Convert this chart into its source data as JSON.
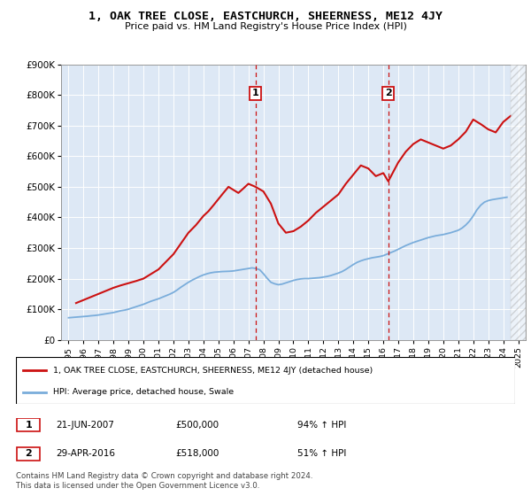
{
  "title": "1, OAK TREE CLOSE, EASTCHURCH, SHEERNESS, ME12 4JY",
  "subtitle": "Price paid vs. HM Land Registry's House Price Index (HPI)",
  "legend_label_red": "1, OAK TREE CLOSE, EASTCHURCH, SHEERNESS, ME12 4JY (detached house)",
  "legend_label_blue": "HPI: Average price, detached house, Swale",
  "annotation1_date": "21-JUN-2007",
  "annotation1_price": "£500,000",
  "annotation1_hpi": "94% ↑ HPI",
  "annotation2_date": "29-APR-2016",
  "annotation2_price": "£518,000",
  "annotation2_hpi": "51% ↑ HPI",
  "marker1_x": 2007.47,
  "marker2_x": 2016.33,
  "ylim": [
    0,
    900000
  ],
  "xlim": [
    1994.5,
    2025.5
  ],
  "yticks": [
    0,
    100000,
    200000,
    300000,
    400000,
    500000,
    600000,
    700000,
    800000,
    900000
  ],
  "ytick_labels": [
    "£0",
    "£100K",
    "£200K",
    "£300K",
    "£400K",
    "£500K",
    "£600K",
    "£700K",
    "£800K",
    "£900K"
  ],
  "xticks": [
    1995,
    1996,
    1997,
    1998,
    1999,
    2000,
    2001,
    2002,
    2003,
    2004,
    2005,
    2006,
    2007,
    2008,
    2009,
    2010,
    2011,
    2012,
    2013,
    2014,
    2015,
    2016,
    2017,
    2018,
    2019,
    2020,
    2021,
    2022,
    2023,
    2024,
    2025
  ],
  "hpi_x": [
    1995,
    1995.25,
    1995.5,
    1995.75,
    1996,
    1996.25,
    1996.5,
    1996.75,
    1997,
    1997.25,
    1997.5,
    1997.75,
    1998,
    1998.25,
    1998.5,
    1998.75,
    1999,
    1999.25,
    1999.5,
    1999.75,
    2000,
    2000.25,
    2000.5,
    2000.75,
    2001,
    2001.25,
    2001.5,
    2001.75,
    2002,
    2002.25,
    2002.5,
    2002.75,
    2003,
    2003.25,
    2003.5,
    2003.75,
    2004,
    2004.25,
    2004.5,
    2004.75,
    2005,
    2005.25,
    2005.5,
    2005.75,
    2006,
    2006.25,
    2006.5,
    2006.75,
    2007,
    2007.25,
    2007.5,
    2007.75,
    2008,
    2008.25,
    2008.5,
    2008.75,
    2009,
    2009.25,
    2009.5,
    2009.75,
    2010,
    2010.25,
    2010.5,
    2010.75,
    2011,
    2011.25,
    2011.5,
    2011.75,
    2012,
    2012.25,
    2012.5,
    2012.75,
    2013,
    2013.25,
    2013.5,
    2013.75,
    2014,
    2014.25,
    2014.5,
    2014.75,
    2015,
    2015.25,
    2015.5,
    2015.75,
    2016,
    2016.25,
    2016.5,
    2016.75,
    2017,
    2017.25,
    2017.5,
    2017.75,
    2018,
    2018.25,
    2018.5,
    2018.75,
    2019,
    2019.25,
    2019.5,
    2019.75,
    2020,
    2020.25,
    2020.5,
    2020.75,
    2021,
    2021.25,
    2021.5,
    2021.75,
    2022,
    2022.25,
    2022.5,
    2022.75,
    2023,
    2023.25,
    2023.5,
    2023.75,
    2024,
    2024.25
  ],
  "hpi_y": [
    72000,
    73000,
    74000,
    75000,
    76000,
    77000,
    78500,
    79500,
    81000,
    83000,
    85000,
    87000,
    89000,
    92000,
    95000,
    97000,
    100000,
    104000,
    108000,
    112000,
    116000,
    121000,
    126000,
    130000,
    134000,
    139000,
    144000,
    149000,
    155000,
    163000,
    172000,
    180000,
    188000,
    195000,
    201000,
    207000,
    212000,
    216000,
    219000,
    221000,
    222000,
    223000,
    223500,
    224000,
    225000,
    227000,
    229000,
    231000,
    233000,
    235000,
    233000,
    229000,
    216000,
    201000,
    188000,
    183000,
    180000,
    182000,
    186000,
    190000,
    194000,
    197000,
    199000,
    200000,
    200000,
    201000,
    202000,
    203000,
    205000,
    207000,
    210000,
    214000,
    218000,
    223000,
    230000,
    238000,
    246000,
    253000,
    258000,
    262000,
    265000,
    268000,
    270000,
    272000,
    275000,
    280000,
    285000,
    290000,
    296000,
    302000,
    308000,
    313000,
    318000,
    322000,
    326000,
    330000,
    334000,
    337000,
    340000,
    342000,
    344000,
    347000,
    350000,
    354000,
    358000,
    365000,
    375000,
    388000,
    405000,
    425000,
    440000,
    450000,
    455000,
    458000,
    460000,
    462000,
    464000,
    466000
  ],
  "red_x": [
    1995.5,
    1996.0,
    1996.5,
    1997.0,
    1997.5,
    1998.0,
    1998.5,
    1999.0,
    1999.5,
    2000.0,
    2000.5,
    2001.0,
    2001.5,
    2002.0,
    2002.5,
    2003.0,
    2003.5,
    2004.0,
    2004.33,
    2004.67,
    2005.0,
    2005.33,
    2005.67,
    2006.0,
    2006.33,
    2006.67,
    2007.0,
    2007.47,
    2008.0,
    2008.5,
    2009.0,
    2009.5,
    2010.0,
    2010.5,
    2011.0,
    2011.5,
    2012.0,
    2012.5,
    2013.0,
    2013.5,
    2014.0,
    2014.5,
    2015.0,
    2015.5,
    2016.0,
    2016.33,
    2017.0,
    2017.5,
    2018.0,
    2018.5,
    2019.0,
    2019.5,
    2020.0,
    2020.5,
    2021.0,
    2021.5,
    2022.0,
    2022.5,
    2023.0,
    2023.5,
    2024.0,
    2024.5
  ],
  "red_y": [
    120000,
    130000,
    140000,
    150000,
    160000,
    170000,
    178000,
    185000,
    192000,
    200000,
    215000,
    230000,
    255000,
    280000,
    315000,
    350000,
    375000,
    405000,
    420000,
    440000,
    460000,
    480000,
    500000,
    490000,
    480000,
    495000,
    510000,
    500000,
    485000,
    445000,
    380000,
    350000,
    355000,
    370000,
    390000,
    415000,
    435000,
    455000,
    475000,
    510000,
    540000,
    570000,
    560000,
    535000,
    545000,
    518000,
    580000,
    615000,
    640000,
    655000,
    645000,
    635000,
    625000,
    635000,
    655000,
    680000,
    720000,
    705000,
    688000,
    678000,
    712000,
    732000
  ],
  "footer": "Contains HM Land Registry data © Crown copyright and database right 2024.\nThis data is licensed under the Open Government Licence v3.0."
}
